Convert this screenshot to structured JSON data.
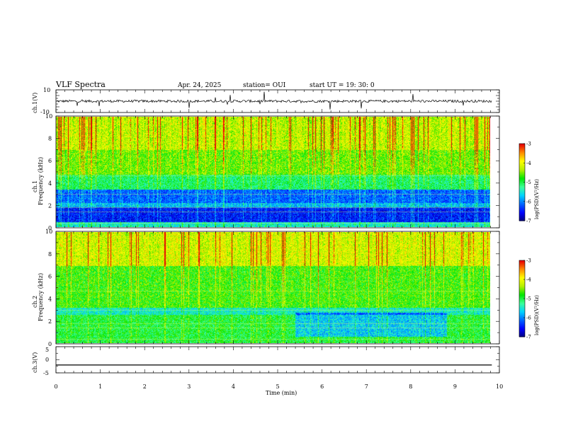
{
  "header": {
    "title": "VLF Spectra",
    "date": "Apr. 24, 2025",
    "station": "station= OUI",
    "start": "start  UT  =   19: 30: 0"
  },
  "colors": {
    "palette": [
      "#00007a",
      "#0000ff",
      "#0064ff",
      "#00d2ff",
      "#3cff9a",
      "#00e600",
      "#b4f000",
      "#ffff00",
      "#ff8c00",
      "#e60000"
    ]
  },
  "chart_data": [
    {
      "type": "line",
      "name": "ch1-waveform",
      "ylabel": "ch.1(V)",
      "ylim": [
        -10,
        10
      ],
      "y_tick_labels": [
        "10",
        "-10"
      ],
      "baseline": 0,
      "xlim": [
        0,
        10
      ]
    },
    {
      "type": "heatmap",
      "name": "ch1-spectrogram",
      "ylabel": "ch.1 Frequency  (kHz)",
      "ylim": [
        0,
        10
      ],
      "y_tick_labels": [
        "0",
        "2",
        "4",
        "6",
        "8",
        "10"
      ],
      "xlim": [
        0,
        9.83
      ],
      "colorbar": {
        "label": "log(PSD)(V²/Hz)",
        "range": [
          -7,
          -3
        ],
        "tick_labels": [
          "-3",
          "-4",
          "-5",
          "-6",
          "-7"
        ]
      }
    },
    {
      "type": "heatmap",
      "name": "ch2-spectrogram",
      "ylabel": "ch.2 Frequency  (kHz)",
      "ylim": [
        0,
        10
      ],
      "y_tick_labels": [
        "0",
        "2",
        "4",
        "6",
        "8",
        "10"
      ],
      "xlim": [
        0,
        9.83
      ],
      "colorbar": {
        "label": "log(PSD)(V²/Hz)",
        "range": [
          -7,
          -3
        ],
        "tick_labels": [
          "-3",
          "-4",
          "-5",
          "-6",
          "-7"
        ]
      }
    },
    {
      "type": "line",
      "name": "ch3-waveform",
      "ylabel": "ch.3(V)",
      "ylim": [
        -5,
        5
      ],
      "y_tick_labels": [
        "5",
        "0",
        "-5"
      ],
      "x": [
        0,
        9.83
      ],
      "y": [
        -2,
        -2
      ],
      "xlim": [
        0,
        10
      ]
    }
  ],
  "x_axis": {
    "label": "Time  (min)",
    "range": [
      0,
      10
    ],
    "tick_labels": [
      "0",
      "1",
      "2",
      "3",
      "4",
      "5",
      "6",
      "7",
      "8",
      "9",
      "10"
    ]
  }
}
